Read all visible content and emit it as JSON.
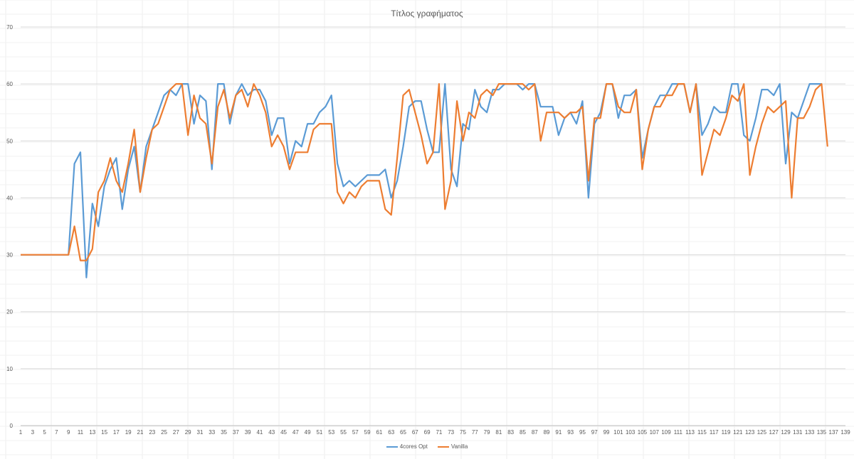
{
  "chart_data": {
    "type": "line",
    "title": "Τίτλος γραφήματος",
    "xlabel": "",
    "ylabel": "",
    "ylim": [
      0,
      70
    ],
    "yticks": [
      0,
      10,
      20,
      30,
      40,
      50,
      60,
      70
    ],
    "x_start": 1,
    "x_end": 139,
    "x_tick_step": 2,
    "grid": "horizontal",
    "legend": "bottom-center",
    "series": [
      {
        "name": "4cores Opt",
        "color": "#5B9BD5",
        "values": [
          30,
          30,
          30,
          30,
          30,
          30,
          30,
          30,
          30,
          46,
          48,
          26,
          39,
          35,
          42,
          45,
          47,
          38,
          45,
          49,
          41,
          49,
          52,
          55,
          58,
          59,
          58,
          60,
          60,
          53,
          58,
          57,
          45,
          60,
          60,
          53,
          58,
          60,
          58,
          59,
          59,
          57,
          51,
          54,
          54,
          46,
          50,
          49,
          53,
          53,
          55,
          56,
          58,
          46,
          42,
          43,
          42,
          43,
          44,
          44,
          44,
          45,
          40,
          43,
          49,
          56,
          57,
          57,
          52,
          48,
          48,
          60,
          45,
          42,
          53,
          52,
          59,
          56,
          55,
          59,
          59,
          60,
          60,
          60,
          59,
          60,
          60,
          56,
          56,
          56,
          51,
          54,
          55,
          53,
          57,
          40,
          53,
          55,
          60,
          60,
          54,
          58,
          58,
          59,
          47,
          52,
          56,
          58,
          58,
          60,
          60,
          60,
          55,
          60,
          51,
          53,
          56,
          55,
          55,
          60,
          60,
          51,
          50,
          54,
          59,
          59,
          58,
          60,
          46,
          55,
          54,
          57,
          60,
          60,
          60
        ]
      },
      {
        "name": "Vanilla",
        "color": "#ED7D31",
        "values": [
          30,
          30,
          30,
          30,
          30,
          30,
          30,
          30,
          30,
          35,
          29,
          29,
          31,
          41,
          43,
          47,
          43,
          41,
          46,
          52,
          41,
          47,
          52,
          53,
          56,
          59,
          60,
          60,
          51,
          58,
          54,
          53,
          46,
          56,
          59,
          54,
          58,
          59,
          56,
          60,
          58,
          55,
          49,
          51,
          49,
          45,
          48,
          48,
          48,
          52,
          53,
          53,
          53,
          41,
          39,
          41,
          40,
          42,
          43,
          43,
          43,
          38,
          37,
          47,
          58,
          59,
          55,
          51,
          46,
          48,
          60,
          38,
          43,
          57,
          50,
          55,
          54,
          58,
          59,
          58,
          60,
          60,
          60,
          60,
          60,
          59,
          60,
          50,
          55,
          55,
          55,
          54,
          55,
          55,
          56,
          43,
          54,
          54,
          60,
          60,
          56,
          55,
          55,
          59,
          45,
          52,
          56,
          56,
          58,
          58,
          60,
          60,
          55,
          60,
          44,
          48,
          52,
          51,
          54,
          58,
          57,
          60,
          44,
          49,
          53,
          56,
          55,
          56,
          57,
          40,
          54,
          54,
          56,
          59,
          60,
          49
        ]
      }
    ]
  }
}
